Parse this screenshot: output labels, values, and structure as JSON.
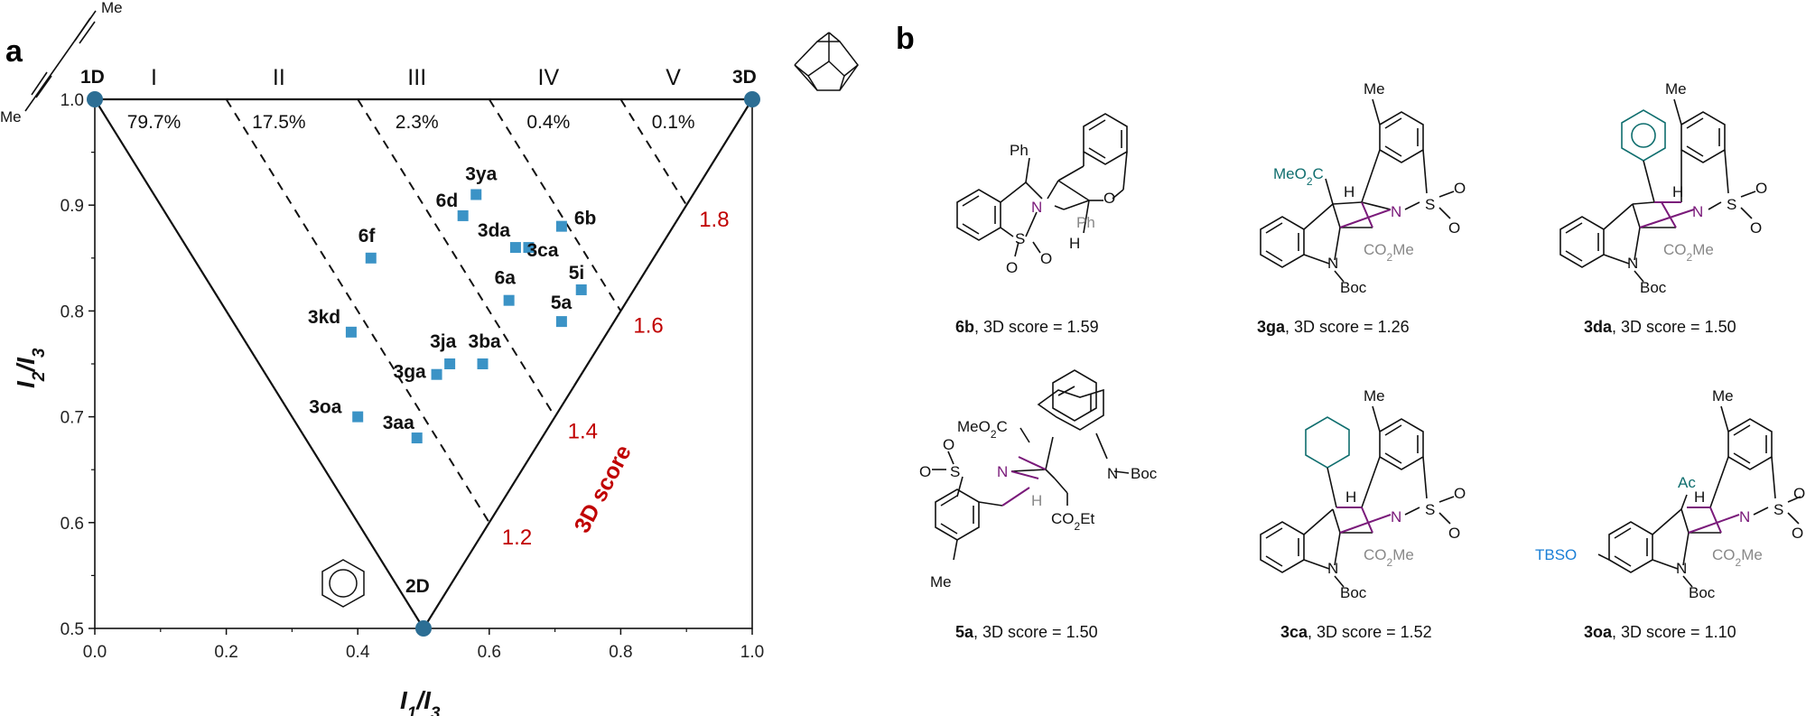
{
  "panels": {
    "a": "a",
    "b": "b"
  },
  "chart_data": {
    "type": "scatter",
    "xlabel_main": "I",
    "xlabel_sub1": "1",
    "xlabel_mid": "/I",
    "xlabel_sub2": "3",
    "ylabel_main": "I",
    "ylabel_sub1": "2",
    "ylabel_mid": "/I",
    "ylabel_sub2": "3",
    "xlim": [
      0.0,
      1.0
    ],
    "ylim": [
      0.5,
      1.0
    ],
    "x_ticks": [
      "0.0",
      "0.2",
      "0.4",
      "0.6",
      "0.8",
      "1.0"
    ],
    "y_ticks": [
      "0.5",
      "0.6",
      "0.7",
      "0.8",
      "0.9",
      "1.0"
    ],
    "marker_color": "#3b93c6",
    "vertex_color": "#2c6e94",
    "corners": [
      {
        "label": "1D",
        "x": 0.0,
        "y": 1.0
      },
      {
        "label": "3D",
        "x": 1.0,
        "y": 1.0
      },
      {
        "label": "2D",
        "x": 0.5,
        "y": 0.5
      }
    ],
    "regions": [
      {
        "label": "I",
        "percent": "79.7%"
      },
      {
        "label": "II",
        "percent": "17.5%"
      },
      {
        "label": "III",
        "percent": "2.3%"
      },
      {
        "label": "IV",
        "percent": "0.4%"
      },
      {
        "label": "V",
        "percent": "0.1%"
      }
    ],
    "score_title": "3D score",
    "score_color": "#c00000",
    "score_lines": [
      "1.2",
      "1.4",
      "1.6",
      "1.8"
    ],
    "points": [
      {
        "label": "3ya",
        "x": 0.58,
        "y": 0.91
      },
      {
        "label": "6d",
        "x": 0.56,
        "y": 0.89
      },
      {
        "label": "6b",
        "x": 0.71,
        "y": 0.88
      },
      {
        "label": "3da",
        "x": 0.64,
        "y": 0.86
      },
      {
        "label": "3ca",
        "x": 0.66,
        "y": 0.86
      },
      {
        "label": "6f",
        "x": 0.42,
        "y": 0.85
      },
      {
        "label": "5i",
        "x": 0.74,
        "y": 0.82
      },
      {
        "label": "6a",
        "x": 0.63,
        "y": 0.81
      },
      {
        "label": "5a",
        "x": 0.71,
        "y": 0.79
      },
      {
        "label": "3kd",
        "x": 0.39,
        "y": 0.78
      },
      {
        "label": "3ja",
        "x": 0.54,
        "y": 0.75
      },
      {
        "label": "3ba",
        "x": 0.59,
        "y": 0.75
      },
      {
        "label": "3ga",
        "x": 0.52,
        "y": 0.74
      },
      {
        "label": "3oa",
        "x": 0.4,
        "y": 0.7
      },
      {
        "label": "3aa",
        "x": 0.49,
        "y": 0.68
      }
    ]
  },
  "panel_a_structures": {
    "diyne_me_top": "Me",
    "diyne_me_bottom": "Me"
  },
  "molecules": [
    {
      "id": "6b",
      "score_text": ", 3D score = 1.59",
      "labels": {
        "ph": "Ph",
        "n": "N",
        "ph_grey": "Ph",
        "o": "O",
        "h": "H",
        "s": "S",
        "o1": "O",
        "o2": "O"
      }
    },
    {
      "id": "3ga",
      "score_text": ", 3D score = 1.26",
      "labels": {
        "me": "Me",
        "ester": "MeO",
        "ester_sub": "2",
        "ester_c": "C",
        "h": "H",
        "n": "N",
        "s": "S",
        "o1": "O",
        "o2": "O",
        "co2me": "CO",
        "co2me_sub": "2",
        "co2me_end": "Me",
        "nboc_n": "N",
        "boc": "Boc"
      }
    },
    {
      "id": "3da",
      "score_text": ", 3D score = 1.50",
      "labels": {
        "me": "Me",
        "h": "H",
        "n": "N",
        "s": "S",
        "o1": "O",
        "o2": "O",
        "co2me": "CO",
        "co2me_sub": "2",
        "co2me_end": "Me",
        "nboc_n": "N",
        "boc": "Boc"
      }
    },
    {
      "id": "5a",
      "score_text": ", 3D score = 1.50",
      "labels": {
        "ester": "MeO",
        "ester_sub": "2",
        "ester_c": "C",
        "o_top": "O",
        "s": "S",
        "n": "N",
        "o_left": "O",
        "h": "H",
        "nboc_n": "N",
        "boc": "Boc",
        "co2et": "CO",
        "co2et_sub": "2",
        "co2et_end": "Et",
        "me": "Me"
      }
    },
    {
      "id": "3ca",
      "score_text": ", 3D score = 1.52",
      "labels": {
        "me": "Me",
        "h": "H",
        "n": "N",
        "s": "S",
        "o1": "O",
        "o2": "O",
        "co2me": "CO",
        "co2me_sub": "2",
        "co2me_end": "Me",
        "nboc_n": "N",
        "boc": "Boc"
      }
    },
    {
      "id": "3oa",
      "score_text": ", 3D score = 1.10",
      "labels": {
        "me": "Me",
        "ac": "Ac",
        "h": "H",
        "n": "N",
        "s": "S",
        "o1": "O",
        "o2": "O",
        "co2me": "CO",
        "co2me_sub": "2",
        "co2me_end": "Me",
        "nboc_n": "N",
        "boc": "Boc",
        "tbso": "TBSO"
      }
    }
  ]
}
